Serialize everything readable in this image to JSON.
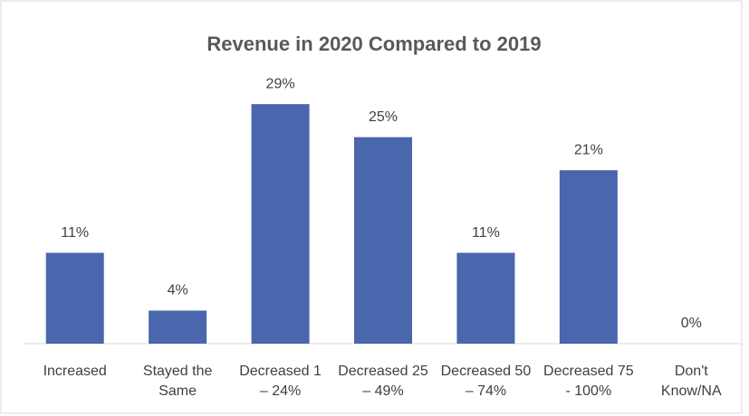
{
  "chart_data": {
    "type": "bar",
    "title": "Revenue in 2020 Compared to 2019",
    "categories": [
      "Increased",
      "Stayed the Same",
      "Decreased 1 – 24%",
      "Decreased 25 – 49%",
      "Decreased 50 – 74%",
      "Decreased 75 - 100%",
      "Don't Know/NA"
    ],
    "values": [
      11,
      4,
      29,
      25,
      11,
      21,
      0
    ],
    "value_labels": [
      "11%",
      "4%",
      "29%",
      "25%",
      "11%",
      "21%",
      "0%"
    ],
    "color": "#4a66ac",
    "ylim": [
      0,
      30
    ]
  }
}
